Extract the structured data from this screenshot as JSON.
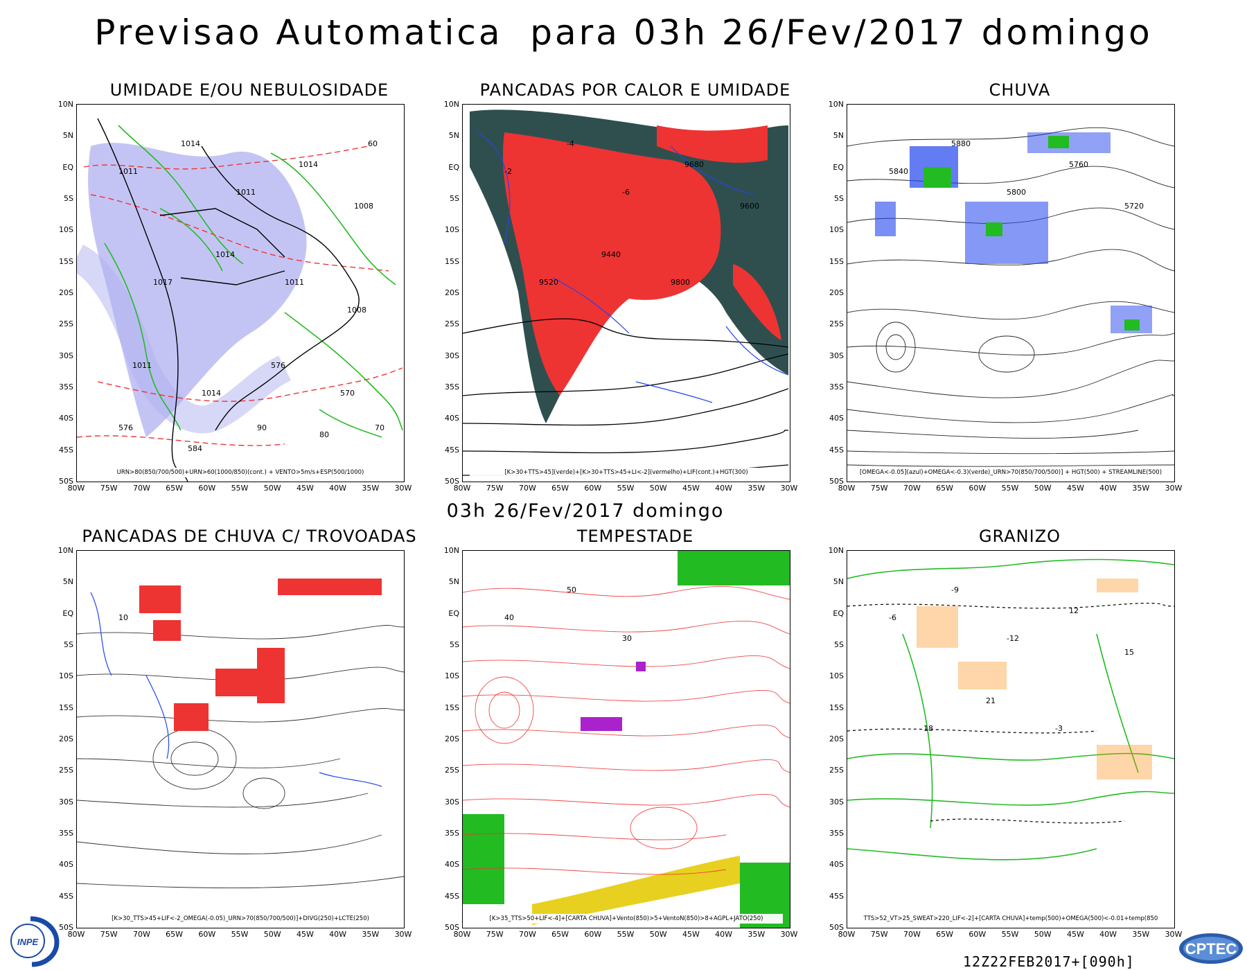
{
  "header": {
    "title": "Previsao Automatica  para 03h 26/Fev/2017 domingo",
    "mid_caption": "03h 26/Fev/2017 domingo",
    "run_stamp": "12Z22FEB2017+[090h]"
  },
  "axes": {
    "lat_labels": [
      "10N",
      "5N",
      "EQ",
      "5S",
      "10S",
      "15S",
      "20S",
      "25S",
      "30S",
      "35S",
      "40S",
      "45S",
      "50S"
    ],
    "lon_labels": [
      "80W",
      "75W",
      "70W",
      "65W",
      "60W",
      "55W",
      "50W",
      "45W",
      "40W",
      "35W",
      "30W"
    ]
  },
  "panels": [
    {
      "title": "UMIDADE E/OU NEBULOSIDADE",
      "legend": "URN>80(850/700/500)+URN>60(1000/850)(cont.) + VENTO>5m/s+ESP(500/1000)",
      "labels": [
        "1011",
        "1014",
        "1011",
        "1014",
        "1008",
        "1017",
        "1014",
        "1011",
        "1008",
        "1011",
        "1014",
        "576",
        "570",
        "576",
        "584",
        "90",
        "80",
        "70",
        "60"
      ]
    },
    {
      "title": "PANCADAS POR CALOR E UMIDADE",
      "legend": "[K>30+TTS>45](verde)+[K>30+TTS>45+LI<-2](vermelho)+LIF(cont.)+HGT(300)",
      "labels": [
        "-2",
        "-4",
        "-6",
        "9680",
        "9600",
        "9520",
        "9440",
        "9800"
      ]
    },
    {
      "title": "CHUVA",
      "legend": "[OMEGA<-0.05](azul)+OMEGA<-0.3)(verde)_URN>70(850/700/500)] + HGT(500) + STREAMLINE(500)",
      "labels": [
        "5840",
        "5880",
        "5800",
        "5760",
        "5720"
      ]
    },
    {
      "title": "PANCADAS DE CHUVA C/ TROVOADAS",
      "legend": "[K>30_TTS>45+LIF<-2_OMEGA(-0.05)_URN>70(850/700/500)]+DIVG(250)+LCTE(250)",
      "labels": [
        "10"
      ]
    },
    {
      "title": "TEMPESTADE",
      "legend": "[K>35_TTS>50+LIF<-4]+[CARTA CHUVA]+Vento(850)>5+VentoN(850)>8+AGPL+JATO(250)",
      "labels": [
        "40",
        "50",
        "30"
      ]
    },
    {
      "title": "GRANIZO",
      "legend": "TTS>52_VT>25_SWEAT>220_LIF<-2]+[CARTA CHUVA]+temp(500)+OMEGA(500)<-0.01+temp(850",
      "labels": [
        "-6",
        "-9",
        "-12",
        "12",
        "15",
        "18",
        "21",
        "-3"
      ]
    }
  ],
  "logos": {
    "left": "INPE",
    "right": "CPTEC"
  },
  "colors": {
    "green": "#22bb22",
    "red": "#ee3333",
    "blue": "#2244ee",
    "lavender": "#b0b0f0",
    "darkteal": "#2f4f4f",
    "purple": "#aa22cc",
    "orange": "#ff8800",
    "yellow": "#e8d020"
  }
}
